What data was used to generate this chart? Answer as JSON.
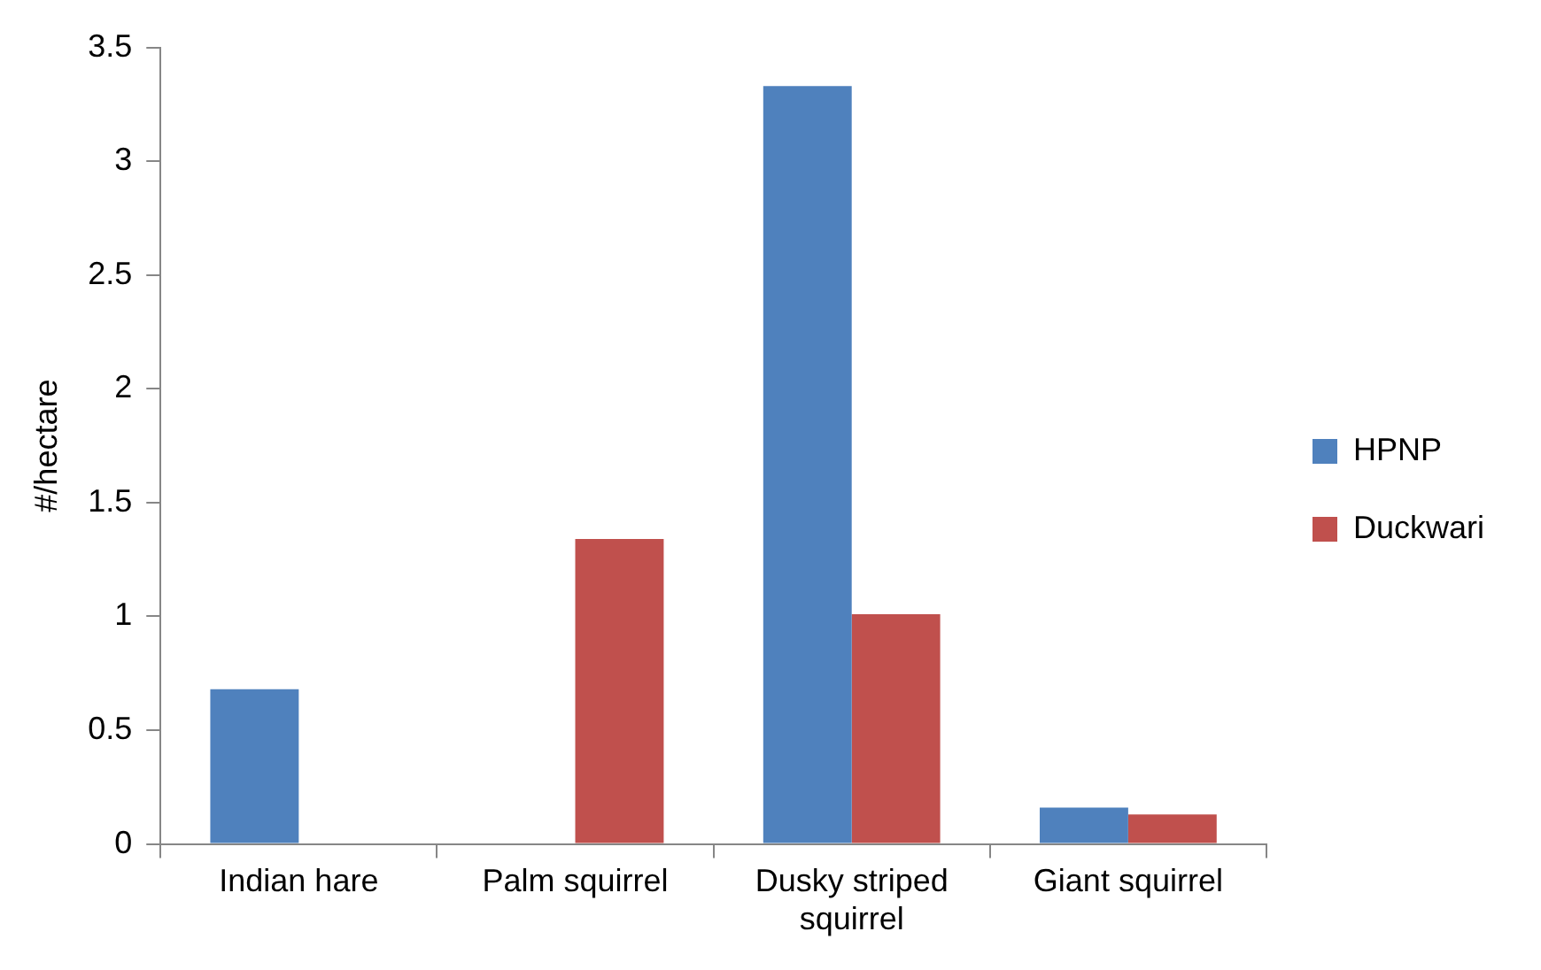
{
  "chart_data": {
    "type": "bar",
    "ylabel": "#/hectare",
    "categories": [
      "Indian hare",
      "Palm squirrel",
      "Dusky striped squirrel",
      "Giant squirrel"
    ],
    "series": [
      {
        "name": "HPNP",
        "color": "#4f81bd",
        "values": [
          0.68,
          0,
          3.33,
          0.16
        ]
      },
      {
        "name": "Duckwari",
        "color": "#c0504d",
        "values": [
          0,
          1.34,
          1.01,
          0.13
        ]
      }
    ],
    "ylim": [
      0,
      3.5
    ],
    "yticks": [
      0,
      0.5,
      1,
      1.5,
      2,
      2.5,
      3,
      3.5
    ],
    "grid": false,
    "legend": "right"
  }
}
